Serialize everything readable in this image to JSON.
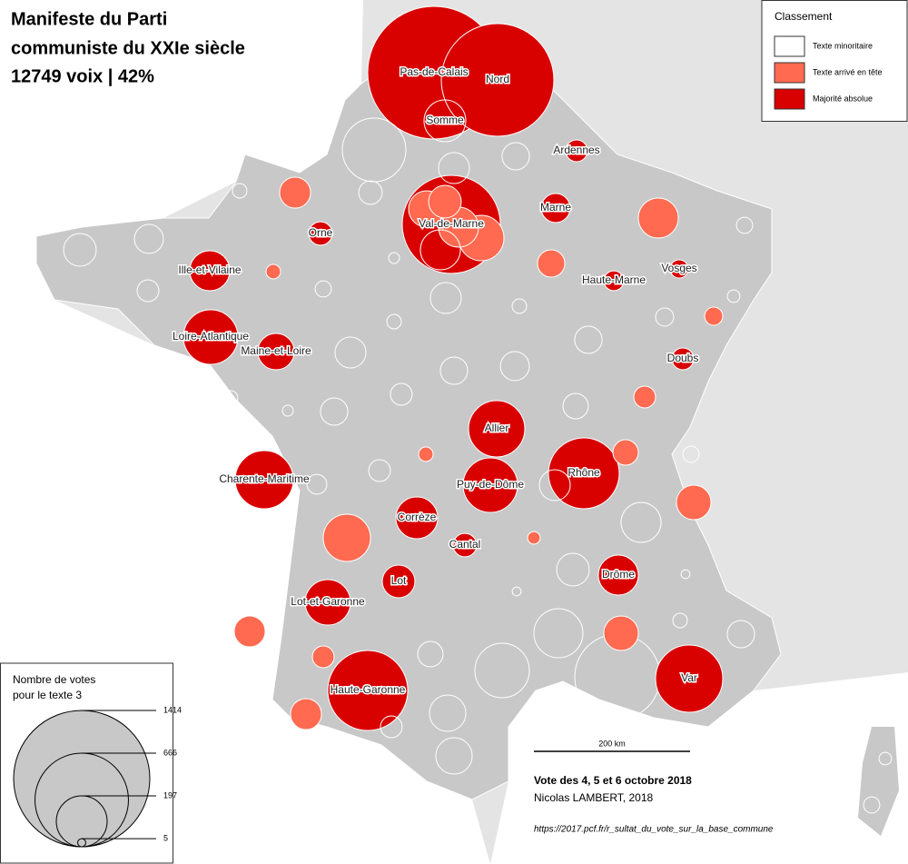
{
  "header": {
    "title": [
      "Manifeste du Parti",
      "communiste du XXIe siècle",
      "12749 voix | 42%"
    ]
  },
  "legend": {
    "title": "Classement",
    "classes": [
      {
        "label": "Texte minoritaire",
        "color": "#ffffff"
      },
      {
        "label": "Texte arrivé en tête",
        "color": "#ff6a50"
      },
      {
        "label": "Majorité absolue",
        "color": "#d90000"
      }
    ]
  },
  "size_legend": {
    "title": [
      "Nombre de votes",
      "pour le texte 3"
    ],
    "values": [
      1414,
      666,
      197,
      5
    ]
  },
  "departments": [
    {
      "name": "Pas-de-Calais",
      "votes": 1340,
      "class": 2
    },
    {
      "name": "Nord",
      "votes": 966,
      "class": 2
    },
    {
      "name": "Somme",
      "votes": 133,
      "class": 0
    },
    {
      "name": "Val-de-Marne",
      "votes": 733,
      "class": 2
    },
    {
      "name": "Ardennes",
      "votes": 36,
      "class": 2
    },
    {
      "name": "Marne",
      "votes": 64,
      "class": 2
    },
    {
      "name": "Orne",
      "votes": 42,
      "class": 2
    },
    {
      "name": "Ille-et-Vilaine",
      "votes": 122,
      "class": 2
    },
    {
      "name": "Haute-Marne",
      "votes": 30,
      "class": 2
    },
    {
      "name": "Vosges",
      "votes": 25,
      "class": 2
    },
    {
      "name": "Loire-Atlantique",
      "votes": 226,
      "class": 2
    },
    {
      "name": "Maine-et-Loire",
      "votes": 101,
      "class": 2
    },
    {
      "name": "Doubs",
      "votes": 36,
      "class": 2
    },
    {
      "name": "Allier",
      "votes": 241,
      "class": 2
    },
    {
      "name": "Rhône",
      "votes": 382,
      "class": 2
    },
    {
      "name": "Charente-Maritime",
      "votes": 257,
      "class": 2
    },
    {
      "name": "Puy-de-Dôme",
      "votes": 226,
      "class": 2
    },
    {
      "name": "Corrèze",
      "votes": 133,
      "class": 2
    },
    {
      "name": "Cantal",
      "votes": 42,
      "class": 2
    },
    {
      "name": "Lot",
      "votes": 81,
      "class": 2
    },
    {
      "name": "Drôme",
      "votes": 122,
      "class": 2
    },
    {
      "name": "Lot-et-Garonne",
      "votes": 157,
      "class": 2
    },
    {
      "name": "Haute-Garonne",
      "votes": 487,
      "class": 2
    },
    {
      "name": "Var",
      "votes": 344,
      "class": 2
    }
  ],
  "other_circles": [
    {
      "votes": 101,
      "class": 1
    },
    {
      "votes": 81,
      "class": 1
    },
    {
      "votes": 122,
      "class": 1
    },
    {
      "votes": 157,
      "class": 1
    },
    {
      "votes": 122,
      "class": 0
    },
    {
      "votes": 73,
      "class": 0
    },
    {
      "votes": 308,
      "class": 0
    },
    {
      "votes": 57,
      "class": 0
    },
    {
      "votes": 16,
      "class": 0
    },
    {
      "votes": 73,
      "class": 1
    },
    {
      "votes": 42,
      "class": 0
    },
    {
      "votes": 81,
      "class": 0
    },
    {
      "votes": 64,
      "class": 0
    },
    {
      "votes": 16,
      "class": 1
    },
    {
      "votes": 122,
      "class": 1
    },
    {
      "votes": 20,
      "class": 0
    },
    {
      "votes": 57,
      "class": 1
    },
    {
      "votes": 9,
      "class": 0
    },
    {
      "votes": 36,
      "class": 0
    },
    {
      "votes": 20,
      "class": 0
    },
    {
      "votes": 73,
      "class": 0
    },
    {
      "votes": 16,
      "class": 0
    },
    {
      "votes": 12,
      "class": 0
    },
    {
      "votes": 25,
      "class": 1
    },
    {
      "votes": 25,
      "class": 0
    },
    {
      "votes": 16,
      "class": 0
    },
    {
      "votes": 73,
      "class": 0
    },
    {
      "votes": 57,
      "class": 0
    },
    {
      "votes": 64,
      "class": 0
    },
    {
      "votes": 57,
      "class": 0
    },
    {
      "votes": 36,
      "class": 0
    },
    {
      "votes": 16,
      "class": 0
    },
    {
      "votes": 9,
      "class": 0
    },
    {
      "votes": 57,
      "class": 0
    },
    {
      "votes": 49,
      "class": 0
    },
    {
      "votes": 36,
      "class": 1
    },
    {
      "votes": 16,
      "class": 1
    },
    {
      "votes": 49,
      "class": 1
    },
    {
      "votes": 20,
      "class": 0
    },
    {
      "votes": 36,
      "class": 0
    },
    {
      "votes": 30,
      "class": 0
    },
    {
      "votes": 73,
      "class": 0
    },
    {
      "votes": 91,
      "class": 1
    },
    {
      "votes": 170,
      "class": 1
    },
    {
      "votes": 12,
      "class": 1
    },
    {
      "votes": 122,
      "class": 0
    },
    {
      "votes": 170,
      "class": 0
    },
    {
      "votes": 81,
      "class": 0
    },
    {
      "votes": 6,
      "class": 0
    },
    {
      "votes": 6,
      "class": 0
    },
    {
      "votes": 73,
      "class": 1
    },
    {
      "votes": 183,
      "class": 0
    },
    {
      "votes": 91,
      "class": 1
    },
    {
      "votes": 16,
      "class": 0
    },
    {
      "votes": 57,
      "class": 0
    },
    {
      "votes": 36,
      "class": 1
    },
    {
      "votes": 49,
      "class": 0
    },
    {
      "votes": 226,
      "class": 0
    },
    {
      "votes": 555,
      "class": 0
    },
    {
      "votes": 122,
      "class": 0
    },
    {
      "votes": 73,
      "class": 1
    },
    {
      "votes": 101,
      "class": 0
    },
    {
      "votes": 36,
      "class": 0
    },
    {
      "votes": 101,
      "class": 0
    },
    {
      "votes": 12,
      "class": 0
    },
    {
      "votes": 20,
      "class": 0
    }
  ],
  "scale_bar": "200 km",
  "footer": {
    "vote": "Vote des 4, 5 et 6 octobre 2018",
    "author": "Nicolas LAMBERT, 2018",
    "source": "https://2017.pcf.fr/r_sultat_du_vote_sur_la_base_commune"
  }
}
